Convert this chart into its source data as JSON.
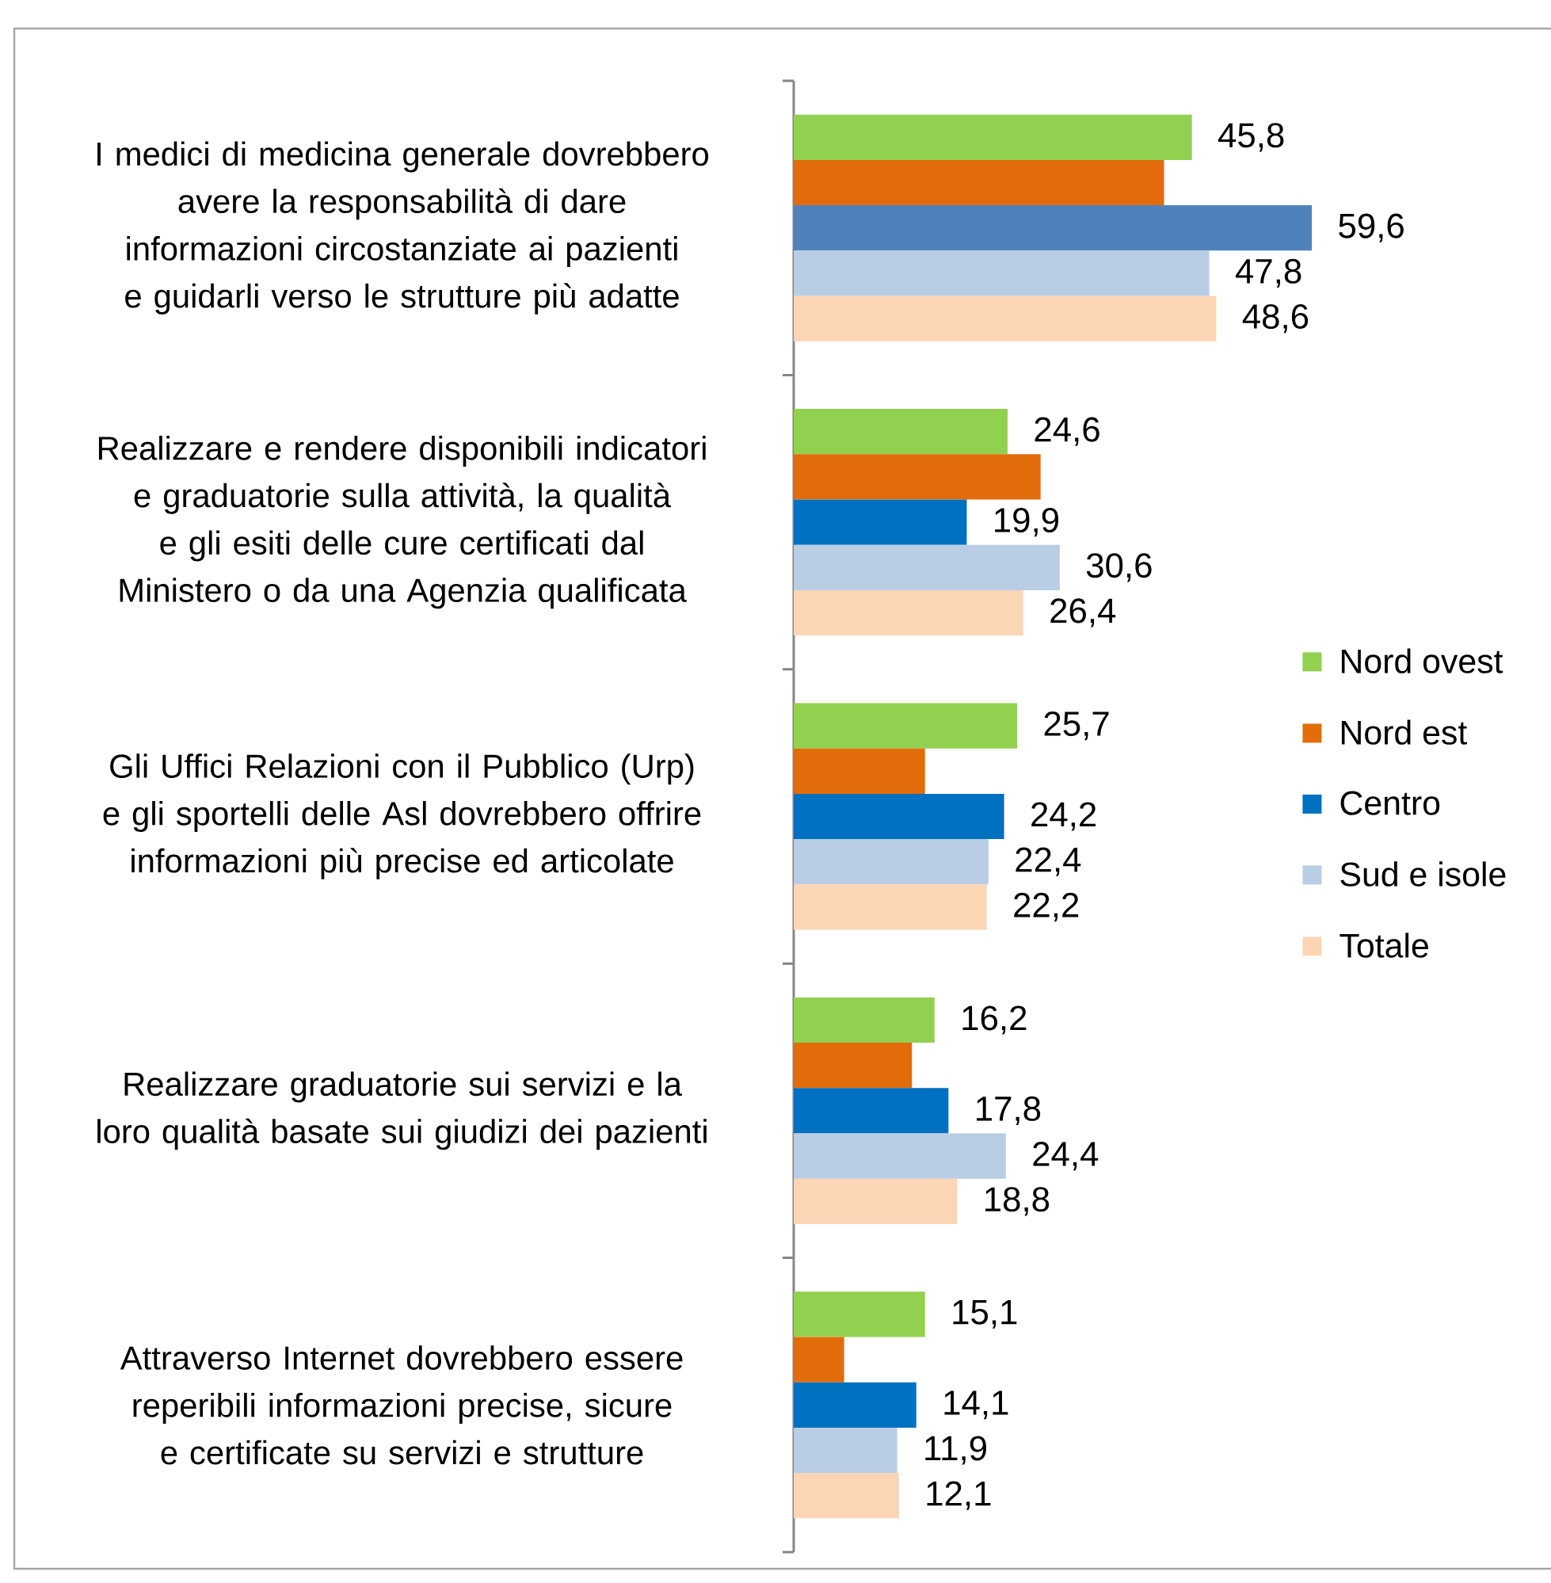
{
  "chart_data": {
    "type": "bar",
    "orientation": "horizontal",
    "categories": [
      "I medici di medicina generale dovrebbero avere la responsabilità di dare informazioni circostanziate ai pazienti e guidarli verso le strutture più adatte",
      "Realizzare e rendere disponibili indicatori e graduatorie sulla attività, la qualità e gli esiti delle cure certificati dal Ministero o da una Agenzia qualificata",
      "Gli Uffici Relazioni con il Pubblico (Urp) e gli sportelli delle Asl dovrebbero offrire informazioni più precise ed articolate",
      "Realizzare graduatorie sui servizi e la loro qualità basate sui giudizi dei pazienti",
      "Attraverso Internet dovrebbero essere reperibili informazioni precise, sicure e certificate su servizi e strutture"
    ],
    "series": [
      {
        "name": "Nord ovest",
        "color": "#92d050",
        "values": [
          45.8,
          24.6,
          25.7,
          16.2,
          15.1
        ],
        "value_labels": [
          "45,8",
          "24,6",
          "25,7",
          "16,2",
          "15,1"
        ]
      },
      {
        "name": "Nord est",
        "color": "#e36c0a",
        "values": [
          42.6,
          28.4,
          15.1,
          13.6,
          5.8
        ]
      },
      {
        "name": "Centro",
        "color": "#0070c0",
        "colors": [
          "#4f81bd",
          "#0070c0",
          "#0070c0",
          "#0070c0",
          "#0070c0"
        ],
        "values": [
          59.6,
          19.9,
          24.2,
          17.8,
          14.1
        ],
        "value_labels": [
          "59,6",
          "19,9",
          "24,2",
          "17,8",
          "14,1"
        ]
      },
      {
        "name": "Sud e isole",
        "color": "#b9cde5",
        "values": [
          47.8,
          30.6,
          22.4,
          24.4,
          11.9
        ],
        "value_labels": [
          "47,8",
          "30,6",
          "22,4",
          "24,4",
          "11,9"
        ]
      },
      {
        "name": "Totale",
        "color": "#fcd5b5",
        "values": [
          48.6,
          26.4,
          22.2,
          18.8,
          12.1
        ],
        "value_labels": [
          "48,6",
          "26,4",
          "22,2",
          "18,8",
          "12,1"
        ]
      }
    ],
    "legend": "right",
    "tick_labels": "y"
  }
}
